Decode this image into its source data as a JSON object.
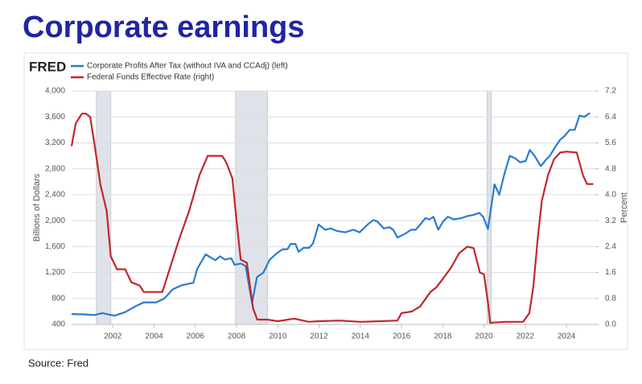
{
  "title": "Corporate earnings",
  "source": "Source: Fred",
  "chart_data": {
    "type": "line",
    "logo": "FRED",
    "ylabel": "Billions of Dollars",
    "y2label": "Percent",
    "xlim": [
      2000,
      2025.4
    ],
    "xticks": [
      2002,
      2004,
      2006,
      2008,
      2010,
      2012,
      2014,
      2016,
      2018,
      2020,
      2022,
      2024
    ],
    "ylim": [
      400,
      4000
    ],
    "yticks": [
      {
        "value": 400,
        "label": "400"
      },
      {
        "value": 800,
        "label": "800"
      },
      {
        "value": 1200,
        "label": "1,200"
      },
      {
        "value": 1600,
        "label": "1,600"
      },
      {
        "value": 2000,
        "label": "2,000"
      },
      {
        "value": 2400,
        "label": "2,400"
      },
      {
        "value": 2800,
        "label": "2,800"
      },
      {
        "value": 3200,
        "label": "3,200"
      },
      {
        "value": 3600,
        "label": "3,600"
      },
      {
        "value": 4000,
        "label": "4,000"
      }
    ],
    "y2lim": [
      0,
      7.2
    ],
    "y2ticks": [
      {
        "value": 0,
        "label": "0.0"
      },
      0.8,
      1.6,
      2.4,
      3.2,
      {
        "value": 4,
        "label": "4.0"
      },
      4.8,
      5.6,
      6.4,
      7.2
    ],
    "grid": true,
    "recessions": [
      [
        2001.2,
        2001.9
      ],
      [
        2007.95,
        2009.5
      ],
      [
        2020.15,
        2020.35
      ]
    ],
    "series": [
      {
        "name": "Corporate Profits After Tax (without IVA and CCAdj) (left)",
        "color": "#2a7bd0",
        "axis": "y",
        "x": [
          2000.0,
          2000.6,
          2001.1,
          2001.5,
          2001.9,
          2002.1,
          2002.6,
          2003.1,
          2003.5,
          2004.1,
          2004.5,
          2004.9,
          2005.3,
          2005.7,
          2005.9,
          2006.1,
          2006.5,
          2006.97,
          2007.2,
          2007.43,
          2007.74,
          2007.9,
          2008.21,
          2008.44,
          2008.75,
          2008.99,
          2009.3,
          2009.61,
          2009.96,
          2010.23,
          2010.47,
          2010.62,
          2010.86,
          2011.01,
          2011.25,
          2011.52,
          2011.71,
          2011.98,
          2012.3,
          2012.57,
          2012.88,
          2013.27,
          2013.66,
          2013.97,
          2014.36,
          2014.63,
          2014.82,
          2015.14,
          2015.41,
          2015.6,
          2015.8,
          2016.19,
          2016.46,
          2016.69,
          2016.85,
          2017.16,
          2017.35,
          2017.55,
          2017.78,
          2018.02,
          2018.25,
          2018.52,
          2018.91,
          2019.18,
          2019.49,
          2019.77,
          2019.96,
          2020.19,
          2020.51,
          2020.74,
          2020.97,
          2021.25,
          2021.52,
          2021.75,
          2022.02,
          2022.22,
          2022.45,
          2022.76,
          2023.0,
          2023.19,
          2023.46,
          2023.7,
          2023.89,
          2024.16,
          2024.4,
          2024.63,
          2024.86,
          2025.14
        ],
        "values": [
          560,
          555,
          545,
          575,
          545,
          535,
          590,
          680,
          740,
          740,
          800,
          940,
          1000,
          1030,
          1040,
          1260,
          1480,
          1390,
          1450,
          1400,
          1420,
          1320,
          1340,
          1300,
          730,
          1130,
          1200,
          1400,
          1500,
          1560,
          1560,
          1640,
          1640,
          1520,
          1580,
          1580,
          1650,
          1940,
          1860,
          1880,
          1840,
          1820,
          1860,
          1820,
          1940,
          2010,
          1990,
          1880,
          1900,
          1860,
          1740,
          1800,
          1860,
          1860,
          1920,
          2040,
          2020,
          2060,
          1860,
          1990,
          2060,
          2020,
          2040,
          2070,
          2090,
          2120,
          2060,
          1870,
          2560,
          2400,
          2700,
          3000,
          2960,
          2900,
          2920,
          3090,
          3000,
          2840,
          2940,
          3000,
          3140,
          3250,
          3300,
          3400,
          3400,
          3620,
          3600,
          3660
        ]
      },
      {
        "name": "Federal Funds Effective Rate (right)",
        "color": "#c1272d",
        "axis": "y2",
        "x": [
          2000.0,
          2000.2,
          2000.5,
          2000.7,
          2000.9,
          2001.1,
          2001.4,
          2001.7,
          2001.9,
          2002.2,
          2002.6,
          2002.9,
          2003.3,
          2003.5,
          2004.0,
          2004.4,
          2004.7,
          2005.2,
          2005.7,
          2006.2,
          2006.6,
          2007.3,
          2007.5,
          2007.8,
          2008.0,
          2008.2,
          2008.5,
          2008.8,
          2009.0,
          2009.5,
          2010.0,
          2010.8,
          2011.5,
          2012.0,
          2013.0,
          2014.0,
          2015.0,
          2015.8,
          2016.0,
          2016.5,
          2016.9,
          2017.4,
          2017.7,
          2018.0,
          2018.4,
          2018.8,
          2019.2,
          2019.5,
          2019.8,
          2020.0,
          2020.2,
          2020.3,
          2021.0,
          2021.9,
          2022.2,
          2022.4,
          2022.6,
          2022.8,
          2023.1,
          2023.4,
          2023.7,
          2024.0,
          2024.5,
          2024.8,
          2025.0,
          2025.3
        ],
        "values": [
          5.5,
          6.2,
          6.5,
          6.5,
          6.4,
          5.6,
          4.3,
          3.5,
          2.1,
          1.7,
          1.7,
          1.3,
          1.2,
          1.0,
          1.0,
          1.0,
          1.6,
          2.6,
          3.5,
          4.6,
          5.2,
          5.2,
          5.0,
          4.5,
          3.2,
          2.0,
          1.9,
          0.5,
          0.15,
          0.15,
          0.1,
          0.18,
          0.08,
          0.1,
          0.12,
          0.08,
          0.1,
          0.12,
          0.35,
          0.4,
          0.55,
          1.0,
          1.15,
          1.4,
          1.75,
          2.2,
          2.4,
          2.35,
          1.6,
          1.55,
          0.65,
          0.05,
          0.08,
          0.08,
          0.35,
          1.2,
          2.6,
          3.8,
          4.6,
          5.1,
          5.3,
          5.33,
          5.3,
          4.6,
          4.33,
          4.33
        ]
      }
    ]
  }
}
